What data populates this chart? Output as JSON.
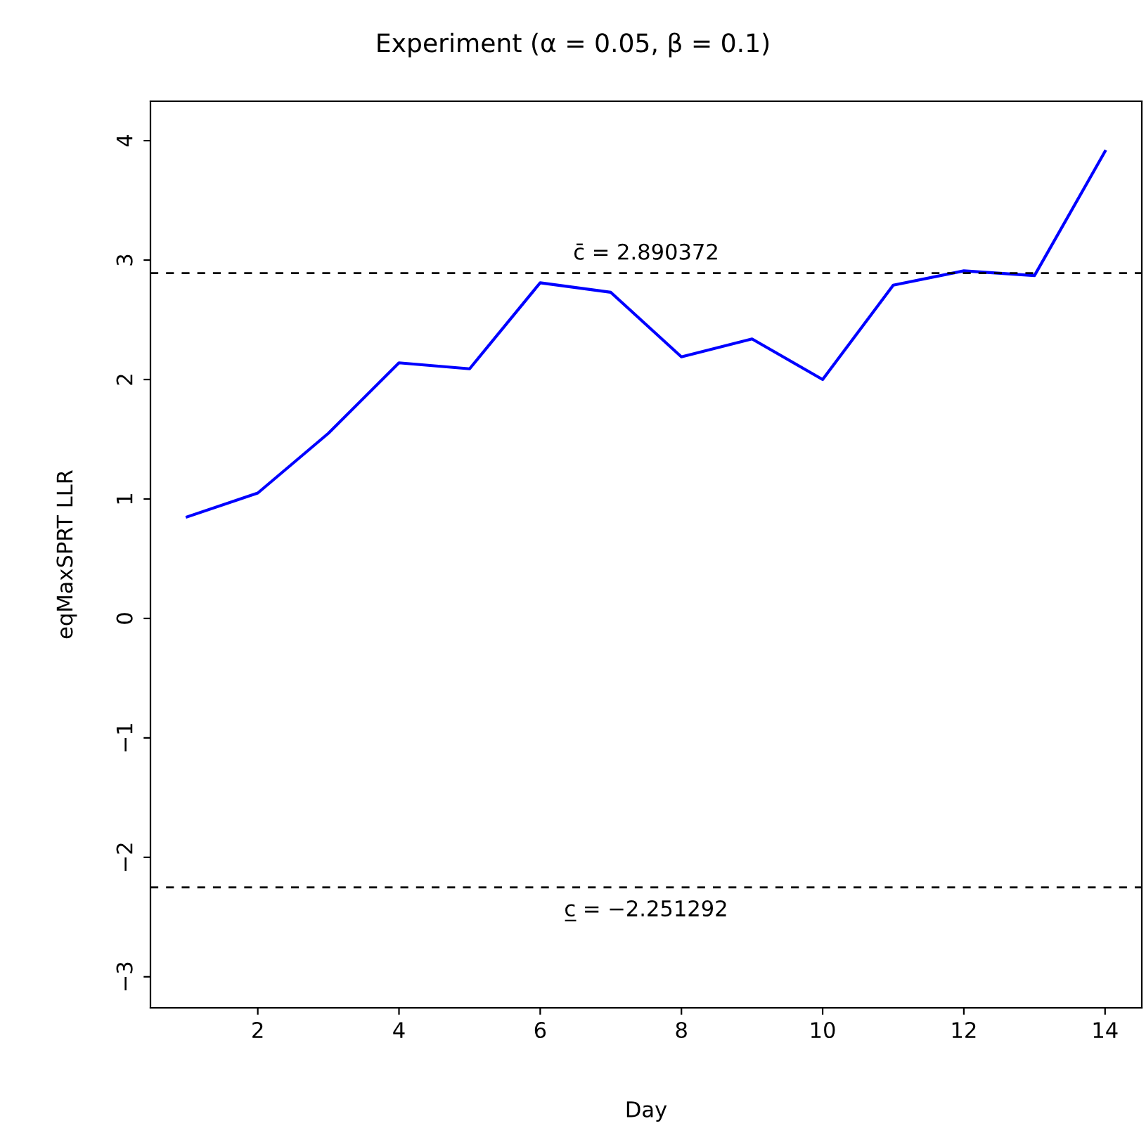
{
  "chart_data": {
    "type": "line",
    "title": "Experiment (α = 0.05, β = 0.1)",
    "xlabel": "Day",
    "ylabel": "eqMaxSPRT LLR",
    "x": [
      1,
      2,
      3,
      4,
      5,
      6,
      7,
      8,
      9,
      10,
      11,
      12,
      13,
      14
    ],
    "series": [
      {
        "color": "#0000ff",
        "values": [
          0.85,
          1.05,
          1.55,
          2.14,
          2.09,
          2.81,
          2.73,
          2.19,
          2.34,
          2.0,
          2.79,
          2.91,
          2.87,
          3.91
        ]
      }
    ],
    "xlim": [
      0.48,
      14.52
    ],
    "ylim": [
      -3.26,
      4.33
    ],
    "xticks": [
      2,
      4,
      6,
      8,
      10,
      12,
      14
    ],
    "yticks": [
      {
        "value": -3,
        "label": "−3"
      },
      {
        "value": -2,
        "label": "−2"
      },
      {
        "value": -1,
        "label": "−1"
      },
      0,
      1,
      2,
      3,
      4
    ],
    "ref_lines": [
      {
        "axis": "y",
        "value": 2.890372,
        "label": "c̄ = 2.890372",
        "color": "#000000",
        "line_style": "dashed"
      },
      {
        "axis": "y",
        "value": -2.251292,
        "label": "c̲ = −2.251292",
        "color": "#000000",
        "line_style": "dashed"
      }
    ],
    "grid": false,
    "legend": false,
    "marker": "none",
    "line_style": "solid"
  }
}
